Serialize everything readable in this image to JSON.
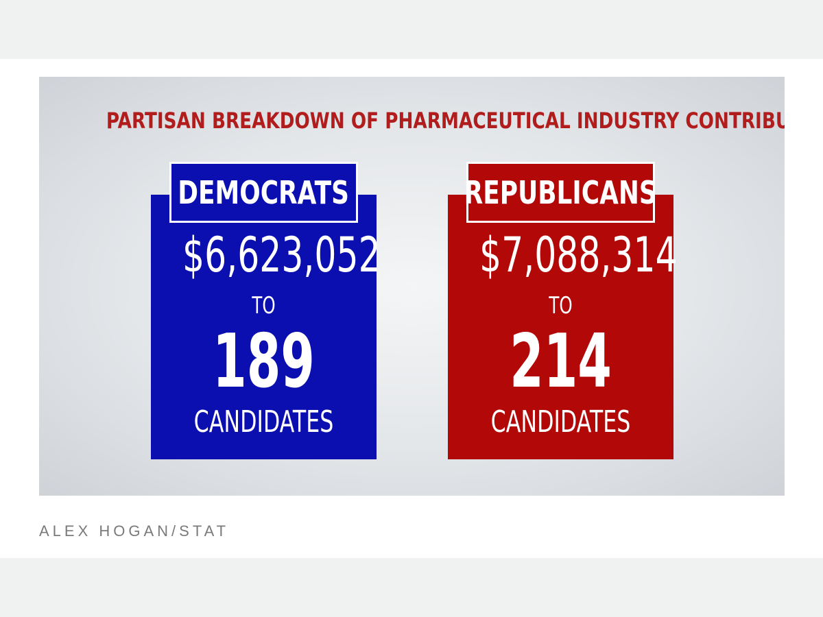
{
  "headline": "PARTISAN BREAKDOWN OF PHARMACEUTICAL INDUSTRY CONTRIBUTIONS",
  "colors": {
    "headline": "#b11c1c",
    "democrats": "#0b0fb0",
    "republicans": "#b20808"
  },
  "panels": [
    {
      "party": "DEMOCRATS",
      "amount": "$6,623,052",
      "connector": "TO",
      "count": "189",
      "unit": "CANDIDATES"
    },
    {
      "party": "REPUBLICANS",
      "amount": "$7,088,314",
      "connector": "TO",
      "count": "214",
      "unit": "CANDIDATES"
    }
  ],
  "credit": "ALEX HOGAN/STAT"
}
